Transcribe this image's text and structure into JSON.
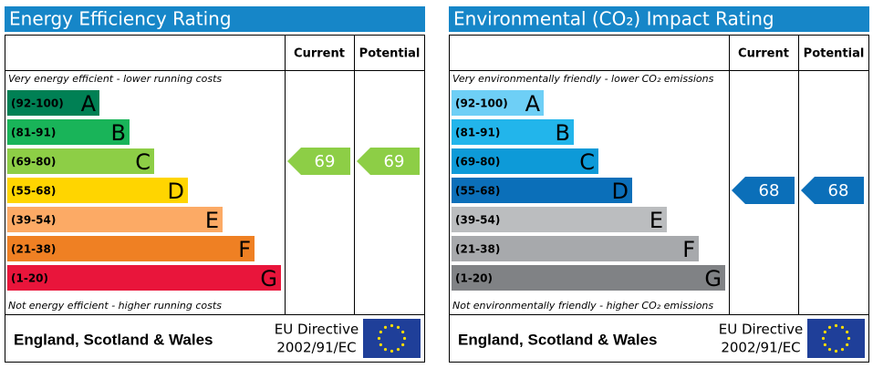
{
  "chart_data": [
    {
      "type": "epc",
      "title": "Energy Efficiency Rating",
      "columns": [
        "Current",
        "Potential"
      ],
      "top_note": "Very energy efficient - lower running costs",
      "bottom_note": "Not energy efficient - higher running costs",
      "bands": [
        {
          "range": "(92-100)",
          "letter": "A",
          "color": "#008054"
        },
        {
          "range": "(81-91)",
          "letter": "B",
          "color": "#19b459"
        },
        {
          "range": "(69-80)",
          "letter": "C",
          "color": "#8dce46"
        },
        {
          "range": "(55-68)",
          "letter": "D",
          "color": "#ffd500"
        },
        {
          "range": "(39-54)",
          "letter": "E",
          "color": "#fcaa65"
        },
        {
          "range": "(21-38)",
          "letter": "F",
          "color": "#ef8023"
        },
        {
          "range": "(1-20)",
          "letter": "G",
          "color": "#e9153b"
        }
      ],
      "current": 69,
      "potential": 69,
      "arrow_color": "#8dce46",
      "footer": {
        "region": "England, Scotland & Wales",
        "directive": "EU Directive",
        "code": "2002/91/EC"
      }
    },
    {
      "type": "epc",
      "title": "Environmental (CO₂) Impact Rating",
      "columns": [
        "Current",
        "Potential"
      ],
      "top_note": "Very environmentally friendly - lower CO₂ emissions",
      "bottom_note": "Not environmentally friendly - higher CO₂ emissions",
      "bands": [
        {
          "range": "(92-100)",
          "letter": "A",
          "color": "#6ecff6"
        },
        {
          "range": "(81-91)",
          "letter": "B",
          "color": "#22b5eb"
        },
        {
          "range": "(69-80)",
          "letter": "C",
          "color": "#0d9ad8"
        },
        {
          "range": "(55-68)",
          "letter": "D",
          "color": "#0b6fb9"
        },
        {
          "range": "(39-54)",
          "letter": "E",
          "color": "#bbbdbf"
        },
        {
          "range": "(21-38)",
          "letter": "F",
          "color": "#a7a9ac"
        },
        {
          "range": "(1-20)",
          "letter": "G",
          "color": "#808285"
        }
      ],
      "current": 68,
      "potential": 68,
      "arrow_color": "#0b6fb9",
      "footer": {
        "region": "England, Scotland & Wales",
        "directive": "EU Directive",
        "code": "2002/91/EC"
      }
    }
  ]
}
